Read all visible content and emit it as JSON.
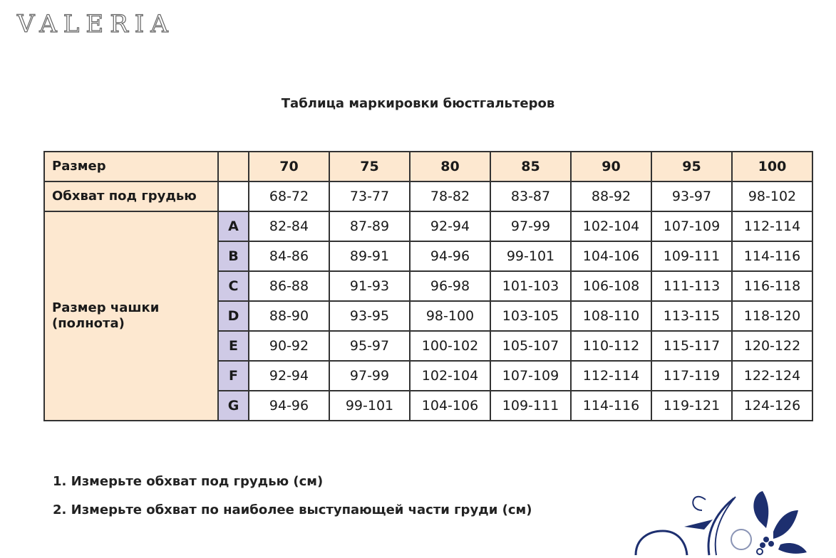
{
  "logo": "VALERIA",
  "title": "Таблица маркировки бюстгальтеров",
  "table": {
    "size_label": "Размер",
    "underbust_label": "Обхват под грудью",
    "cup_label": "Размер чашки (полнота)",
    "sizes": [
      "70",
      "75",
      "80",
      "85",
      "90",
      "95",
      "100"
    ],
    "underbust": [
      "68-72",
      "73-77",
      "78-82",
      "83-87",
      "88-92",
      "93-97",
      "98-102"
    ],
    "cups": [
      {
        "cup": "A",
        "values": [
          "82-84",
          "87-89",
          "92-94",
          "97-99",
          "102-104",
          "107-109",
          "112-114"
        ]
      },
      {
        "cup": "B",
        "values": [
          "84-86",
          "89-91",
          "94-96",
          "99-101",
          "104-106",
          "109-111",
          "114-116"
        ]
      },
      {
        "cup": "C",
        "values": [
          "86-88",
          "91-93",
          "96-98",
          "101-103",
          "106-108",
          "111-113",
          "116-118"
        ]
      },
      {
        "cup": "D",
        "values": [
          "88-90",
          "93-95",
          "98-100",
          "103-105",
          "108-110",
          "113-115",
          "118-120"
        ]
      },
      {
        "cup": "E",
        "values": [
          "90-92",
          "95-97",
          "100-102",
          "105-107",
          "110-112",
          "115-117",
          "120-122"
        ]
      },
      {
        "cup": "F",
        "values": [
          "92-94",
          "97-99",
          "102-104",
          "107-109",
          "112-114",
          "117-119",
          "122-124"
        ]
      },
      {
        "cup": "G",
        "values": [
          "94-96",
          "99-101",
          "104-106",
          "109-111",
          "114-116",
          "119-121",
          "124-126"
        ]
      }
    ]
  },
  "notes": [
    "1. Измерьте обхват под грудью (см)",
    "2. Измерьте обхват по наиболее выступающей части груди (см)"
  ],
  "colors": {
    "header": "#fde8d0",
    "cup_letter": "#cfcae6",
    "ornament": "#1d2f6f"
  }
}
